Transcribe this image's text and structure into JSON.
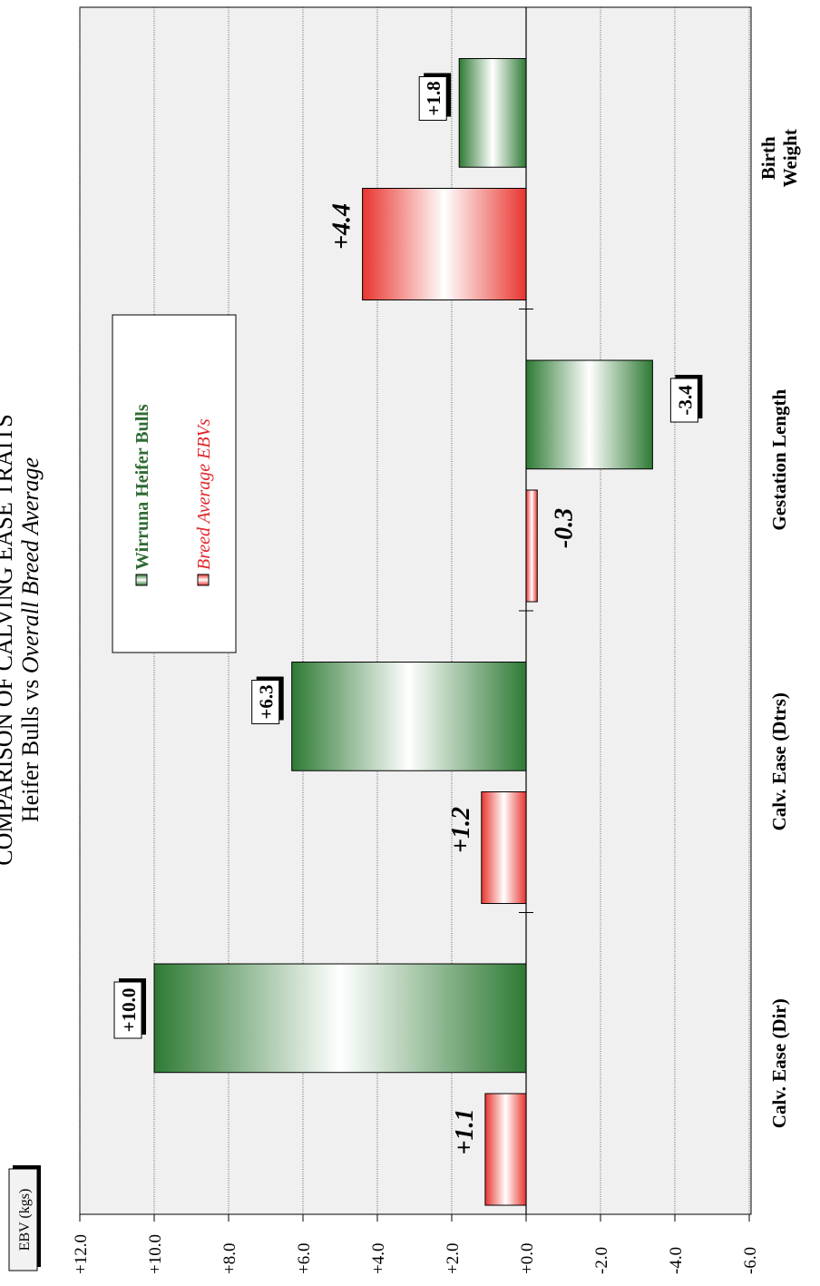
{
  "chart_data": {
    "type": "bar",
    "title": "COMPARISON OF CALVING EASE TRAITS",
    "subtitle_plain": "Heifer Bulls vs ",
    "subtitle_italic": "Overall Breed Average",
    "ylabel": "EBV (kgs)",
    "categories": [
      "Calv. Ease (Dir)",
      "Calv. Ease (Dtrs)",
      "Gestation Length",
      "Birth Weight"
    ],
    "series": [
      {
        "name": "Wirruna Heifer Bulls",
        "values": [
          10.0,
          6.3,
          -3.4,
          1.8
        ],
        "labels": [
          "+10.0",
          "+6.3",
          "-3.4",
          "+1.8"
        ]
      },
      {
        "name": "Breed Average EBVs",
        "values": [
          1.1,
          1.2,
          -0.3,
          4.4
        ],
        "labels": [
          "+1.1",
          "+1.2",
          "-0.3",
          "+4.4"
        ]
      }
    ],
    "ylim": [
      -6,
      12
    ],
    "yticks": [
      12,
      10,
      8,
      6,
      4,
      2,
      0,
      -2,
      -4,
      -6
    ],
    "ytick_labels": [
      "+12.0",
      "+10.0",
      "+8.0",
      "+6.0",
      "+4.0",
      "+2.0",
      "+0.0",
      "-2.0",
      "-4.0",
      "-6.0"
    ],
    "colors": {
      "heifer": "#2e7a34",
      "breed": "#e8352f",
      "plot_bg": "#f0f0f0"
    },
    "grid": true,
    "orientation": "rotated 90 degrees counter-clockwise",
    "legend_position": "center"
  }
}
